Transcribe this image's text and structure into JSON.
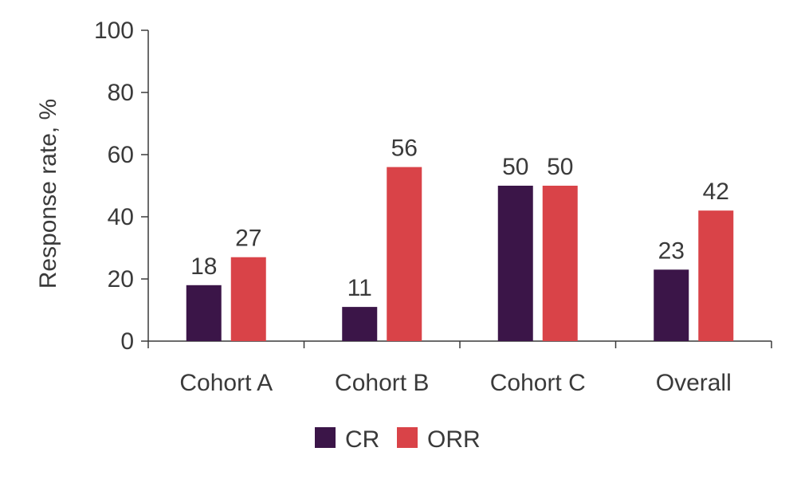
{
  "chart_data": {
    "type": "bar",
    "ylabel": "Response rate, %",
    "xlabel": "",
    "ylim": [
      0,
      100
    ],
    "yticks": [
      0,
      20,
      40,
      60,
      80,
      100
    ],
    "categories": [
      "Cohort A",
      "Cohort B",
      "Cohort C",
      "Overall"
    ],
    "series": [
      {
        "name": "CR",
        "color": "#3b1548",
        "values": [
          18,
          11,
          50,
          23
        ]
      },
      {
        "name": "ORR",
        "color": "#d94348",
        "values": [
          27,
          56,
          50,
          42
        ]
      }
    ],
    "grid": false,
    "legend_position": "bottom"
  }
}
